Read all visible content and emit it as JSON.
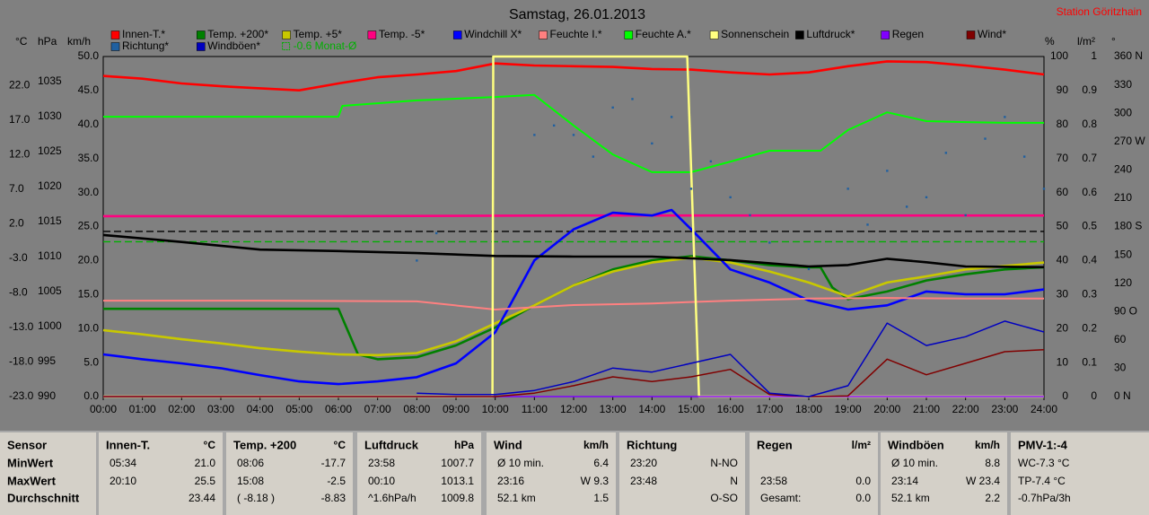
{
  "chart_data": {
    "type": "line",
    "title": "Samstag, 26.01.2013",
    "station": "Station Göritzhain",
    "xlim": [
      0,
      24
    ],
    "xticks": [
      {
        "value": 0,
        "label": "00:00"
      },
      {
        "value": 1,
        "label": "01:00"
      },
      {
        "value": 2,
        "label": "02:00"
      },
      {
        "value": 3,
        "label": "03:00"
      },
      {
        "value": 4,
        "label": "04:00"
      },
      {
        "value": 5,
        "label": "05:00"
      },
      {
        "value": 6,
        "label": "06:00"
      },
      {
        "value": 7,
        "label": "07:00"
      },
      {
        "value": 8,
        "label": "08:00"
      },
      {
        "value": 9,
        "label": "09:00"
      },
      {
        "value": 10,
        "label": "10:00"
      },
      {
        "value": 11,
        "label": "11:00"
      },
      {
        "value": 12,
        "label": "12:00"
      },
      {
        "value": 13,
        "label": "13:00"
      },
      {
        "value": 14,
        "label": "14:00"
      },
      {
        "value": 15,
        "label": "15:00"
      },
      {
        "value": 16,
        "label": "16:00"
      },
      {
        "value": 17,
        "label": "17:00"
      },
      {
        "value": 18,
        "label": "18:00"
      },
      {
        "value": 19,
        "label": "19:00"
      },
      {
        "value": 20,
        "label": "20:00"
      },
      {
        "value": 21,
        "label": "21:00"
      },
      {
        "value": 22,
        "label": "22:00"
      },
      {
        "value": 23,
        "label": "23:00"
      },
      {
        "value": 24,
        "label": "24:00"
      }
    ],
    "axes": {
      "temp": {
        "label": "°C",
        "ylim": [
          -23,
          26.2
        ],
        "yticks": [
          {
            "value": -23,
            "label": "-23.0"
          },
          {
            "value": -18,
            "label": "-18.0"
          },
          {
            "value": -13,
            "label": "-13.0"
          },
          {
            "value": -8,
            "label": "-8.0"
          },
          {
            "value": -3,
            "label": "-3.0"
          },
          {
            "value": 2,
            "label": "2.0"
          },
          {
            "value": 7,
            "label": "7.0"
          },
          {
            "value": 12,
            "label": "12.0"
          },
          {
            "value": 17,
            "label": "17.0"
          },
          {
            "value": 22,
            "label": "22.0"
          }
        ]
      },
      "hpa": {
        "label": "hPa",
        "ylim": [
          990,
          1038.6
        ],
        "yticks": [
          990,
          995,
          1000,
          1005,
          1010,
          1015,
          1020,
          1025,
          1030,
          1035
        ]
      },
      "kmh": {
        "label": "km/h",
        "ylim": [
          0,
          50
        ],
        "yticks": [
          {
            "value": 0,
            "label": "0.0"
          },
          {
            "value": 5,
            "label": "5.0"
          },
          {
            "value": 10,
            "label": "10.0"
          },
          {
            "value": 15,
            "label": "15.0"
          },
          {
            "value": 20,
            "label": "20.0"
          },
          {
            "value": 25,
            "label": "25.0"
          },
          {
            "value": 30,
            "label": "30.0"
          },
          {
            "value": 35,
            "label": "35.0"
          },
          {
            "value": 40,
            "label": "40.0"
          },
          {
            "value": 45,
            "label": "45.0"
          },
          {
            "value": 50,
            "label": "50.0"
          }
        ]
      },
      "pct": {
        "label": "%",
        "ylim": [
          0,
          100
        ],
        "yticks": [
          0,
          10,
          20,
          30,
          40,
          50,
          60,
          70,
          80,
          90,
          100
        ]
      },
      "rain": {
        "label": "l/m²",
        "ylim": [
          0,
          1
        ],
        "yticks": [
          0,
          0.1,
          0.2,
          0.3,
          0.4,
          0.5,
          0.6,
          0.7,
          0.8,
          0.9,
          1
        ]
      },
      "deg": {
        "label": "°",
        "ylim": [
          0,
          360
        ],
        "yticks": [
          {
            "value": 0,
            "label": "0 N"
          },
          30,
          60,
          {
            "value": 90,
            "label": "90 O"
          },
          120,
          150,
          {
            "value": 180,
            "label": "180 S"
          },
          210,
          240,
          {
            "value": 270,
            "label": "270 W"
          },
          300,
          330,
          {
            "value": 360,
            "label": "360 N"
          }
        ]
      }
    },
    "series": [
      {
        "name": "Innen-T.*",
        "color": "#ff0000",
        "axis": "temp",
        "x": [
          0,
          1,
          2,
          3,
          4,
          5,
          6,
          7,
          8,
          9,
          10,
          11,
          12,
          13,
          14,
          15,
          16,
          17,
          18,
          19,
          20,
          21,
          22,
          23,
          24
        ],
        "values": [
          23.4,
          23.0,
          22.3,
          21.9,
          21.6,
          21.3,
          22.3,
          23.2,
          23.6,
          24.1,
          25.2,
          24.9,
          24.8,
          24.7,
          24.4,
          24.3,
          23.9,
          23.6,
          23.9,
          24.8,
          25.5,
          25.4,
          24.9,
          24.3,
          23.6
        ]
      },
      {
        "name": "Temp. +200*",
        "color": "#008000",
        "axis": "temp",
        "x": [
          0,
          1,
          2,
          3,
          4,
          5,
          6,
          6.5,
          7,
          8,
          9,
          10,
          11,
          12,
          13,
          14,
          15,
          16,
          17,
          18,
          18.3,
          18.6,
          19,
          20,
          21,
          22,
          23,
          24
        ],
        "values": [
          -10.3,
          -10.3,
          -10.3,
          -10.3,
          -10.3,
          -10.3,
          -10.3,
          -16.9,
          -17.6,
          -17.3,
          -15.6,
          -13.0,
          -9.8,
          -6.9,
          -4.6,
          -3.3,
          -2.7,
          -3.3,
          -4.0,
          -4.3,
          -4.3,
          -7.2,
          -8.9,
          -7.8,
          -6.2,
          -5.3,
          -4.6,
          -4.3
        ]
      },
      {
        "name": "Temp. +5*",
        "color": "#c8c800",
        "axis": "temp",
        "x": [
          0,
          1,
          2,
          3,
          4,
          5,
          6,
          7,
          8,
          9,
          10,
          11,
          12,
          13,
          14,
          15,
          16,
          17,
          18,
          19,
          20,
          21,
          22,
          23,
          24
        ],
        "values": [
          -13.4,
          -14.0,
          -14.7,
          -15.3,
          -16.0,
          -16.5,
          -16.9,
          -17.0,
          -16.7,
          -15.0,
          -12.4,
          -9.8,
          -6.9,
          -4.9,
          -3.6,
          -2.9,
          -3.6,
          -4.9,
          -6.5,
          -8.5,
          -6.5,
          -5.6,
          -4.6,
          -4.1,
          -3.6
        ]
      },
      {
        "name": "Temp. -5*",
        "color": "#ff0080",
        "axis": "temp",
        "x": [
          0,
          6,
          12,
          18,
          24
        ],
        "values": [
          3.1,
          3.1,
          3.2,
          3.2,
          3.2
        ]
      },
      {
        "name": "Windchill X*",
        "color": "#0000ff",
        "axis": "temp",
        "x": [
          0,
          1,
          2,
          3,
          4,
          5,
          6,
          7,
          8,
          9,
          10,
          11,
          12,
          13,
          14,
          14.5,
          15,
          16,
          17,
          18,
          19,
          20,
          21,
          22,
          23,
          24
        ],
        "values": [
          -16.9,
          -17.6,
          -18.2,
          -18.9,
          -19.9,
          -20.8,
          -21.2,
          -20.8,
          -20.2,
          -18.2,
          -13.7,
          -3.3,
          1.2,
          3.6,
          3.2,
          4.0,
          1.2,
          -4.6,
          -6.5,
          -9.1,
          -10.4,
          -9.8,
          -7.8,
          -8.2,
          -8.2,
          -7.5
        ]
      },
      {
        "name": "Feuchte I.*",
        "color": "#ff8080",
        "axis": "pct",
        "x": [
          0,
          4,
          8,
          10,
          12,
          14,
          16,
          18,
          20,
          22,
          24
        ],
        "values": [
          28.2,
          28.2,
          28.0,
          25.6,
          26.9,
          27.4,
          28.2,
          28.8,
          29.0,
          28.8,
          28.8
        ]
      },
      {
        "name": "Feuchte A.*",
        "color": "#00ff00",
        "axis": "pct",
        "x": [
          0,
          6,
          6.1,
          8,
          10,
          11,
          12,
          13,
          14,
          15,
          16,
          17,
          18,
          18.3,
          19,
          20,
          21,
          22,
          23,
          24
        ],
        "values": [
          82.3,
          82.3,
          85.5,
          87.1,
          88.1,
          88.7,
          79.7,
          71.2,
          66.0,
          66.0,
          69.1,
          72.3,
          72.3,
          72.3,
          78.4,
          83.6,
          81.0,
          80.7,
          80.5,
          80.5
        ]
      },
      {
        "name": "Sonnenschein",
        "color": "#ffff80",
        "axis": "pct",
        "x": [
          0,
          9.93,
          9.95,
          14.9,
          15.2,
          24
        ],
        "values": [
          0,
          0,
          100,
          100,
          0,
          0
        ]
      },
      {
        "name": "Luftdruck*",
        "color": "#000000",
        "axis": "hpa",
        "x": [
          0,
          2,
          4,
          6,
          8,
          10,
          12,
          14,
          16,
          18,
          19,
          20,
          21,
          22,
          24
        ],
        "values": [
          1013.1,
          1012.1,
          1011.0,
          1010.8,
          1010.5,
          1010.1,
          1010.0,
          1010.0,
          1009.5,
          1008.6,
          1008.8,
          1009.7,
          1009.2,
          1008.6,
          1008.5
        ]
      },
      {
        "name": "Regen",
        "color": "#8000ff",
        "axis": "rain",
        "x": [
          0,
          24
        ],
        "values": [
          0,
          0
        ]
      },
      {
        "name": "Wind*",
        "color": "#800000",
        "axis": "kmh",
        "x": [
          0,
          1,
          2,
          3,
          4,
          5,
          6,
          7,
          8,
          9,
          10,
          11,
          12,
          13,
          14,
          15,
          16,
          17,
          18,
          19,
          20,
          21,
          22,
          23,
          24
        ],
        "values": [
          0,
          0,
          0,
          0,
          0,
          0,
          0,
          0,
          0,
          0,
          0,
          0.5,
          1.6,
          2.9,
          2.2,
          2.9,
          4.0,
          0.3,
          0,
          0.1,
          5.5,
          3.2,
          4.9,
          6.6,
          6.9
        ]
      },
      {
        "name": "Richtung*",
        "color": "#2060a0",
        "axis": "deg",
        "type": "scatter",
        "x": [
          8,
          8.5,
          11,
          11.5,
          12,
          12.5,
          13,
          13.5,
          14,
          14.5,
          15,
          15.5,
          16,
          16.5,
          17,
          18,
          19,
          19.5,
          20,
          20.5,
          21,
          21.5,
          22,
          22.5,
          23,
          23.5,
          24
        ],
        "values": [
          144,
          173,
          277,
          287,
          277,
          254,
          306,
          315,
          268,
          296,
          220,
          249,
          211,
          192,
          163,
          135,
          220,
          182,
          239,
          201,
          211,
          258,
          192,
          273,
          296,
          254,
          220
        ]
      },
      {
        "name": "Windböen*",
        "color": "#0000c0",
        "axis": "kmh",
        "x": [
          0,
          1,
          2,
          3,
          4,
          5,
          6,
          7,
          8,
          9,
          10,
          11,
          12,
          13,
          14,
          15,
          16,
          17,
          18,
          19,
          20,
          21,
          22,
          23,
          24
        ],
        "values": [
          null,
          null,
          null,
          null,
          null,
          null,
          null,
          null,
          0.5,
          0.3,
          0.3,
          0.9,
          2.2,
          4.2,
          3.6,
          4.9,
          6.2,
          0.5,
          0,
          1.6,
          10.8,
          7.5,
          8.8,
          11.1,
          9.5
        ]
      }
    ],
    "references": [
      {
        "name": "-0.6 Monat-Ø",
        "value": -0.6,
        "axis": "temp",
        "color": "#00b000",
        "dash": true
      },
      {
        "value": 1013.6,
        "axis": "hpa",
        "color": "#000000",
        "dash": true
      }
    ]
  },
  "table": {
    "panels": [
      {
        "title": "Sensor",
        "rows": [
          [
            "MinWert"
          ],
          [
            "MaxWert"
          ],
          [
            "Durchschnitt"
          ]
        ]
      },
      {
        "title": "Innen-T.",
        "unit": "°C",
        "rows": [
          [
            "05:34",
            "21.0"
          ],
          [
            "20:10",
            "25.5"
          ],
          [
            null,
            "23.44"
          ]
        ]
      },
      {
        "title": "Temp. +200",
        "unit": "°C",
        "rows": [
          [
            "08:06",
            "-17.7"
          ],
          [
            "15:08",
            "-2.5"
          ],
          [
            "( -8.18 )",
            "-8.83"
          ]
        ]
      },
      {
        "title": "Luftdruck",
        "unit": "hPa",
        "rows": [
          [
            "23:58",
            "1007.7"
          ],
          [
            "00:10",
            "1013.1"
          ],
          [
            "^1.6hPa/h",
            "1009.8"
          ]
        ]
      },
      {
        "title": "Wind",
        "unit": "km/h",
        "rows": [
          [
            "Ø 10 min.",
            "6.4"
          ],
          [
            "23:16",
            "W 9.3"
          ],
          [
            "52.1 km",
            "1.5"
          ]
        ]
      },
      {
        "title": "Richtung",
        "rows": [
          [
            "23:20",
            "N-NO"
          ],
          [
            "23:48",
            "N"
          ],
          [
            null,
            "O-SO"
          ]
        ]
      },
      {
        "title": "Regen",
        "unit": "l/m²",
        "rows": [
          [
            null,
            null
          ],
          [
            "23:58",
            "0.0"
          ],
          [
            "Gesamt:",
            "0.0"
          ]
        ]
      },
      {
        "title": "Windböen",
        "unit": "km/h",
        "rows": [
          [
            "Ø 10 min.",
            "8.8"
          ],
          [
            "23:14",
            "W 23.4"
          ],
          [
            "52.1 km",
            "2.2"
          ]
        ]
      },
      {
        "title": "PMV-1:-4",
        "rows": [
          [
            "WC-7.3 °C"
          ],
          [
            "TP-7.4 °C"
          ],
          [
            "-0.7hPa/3h"
          ]
        ]
      }
    ]
  }
}
